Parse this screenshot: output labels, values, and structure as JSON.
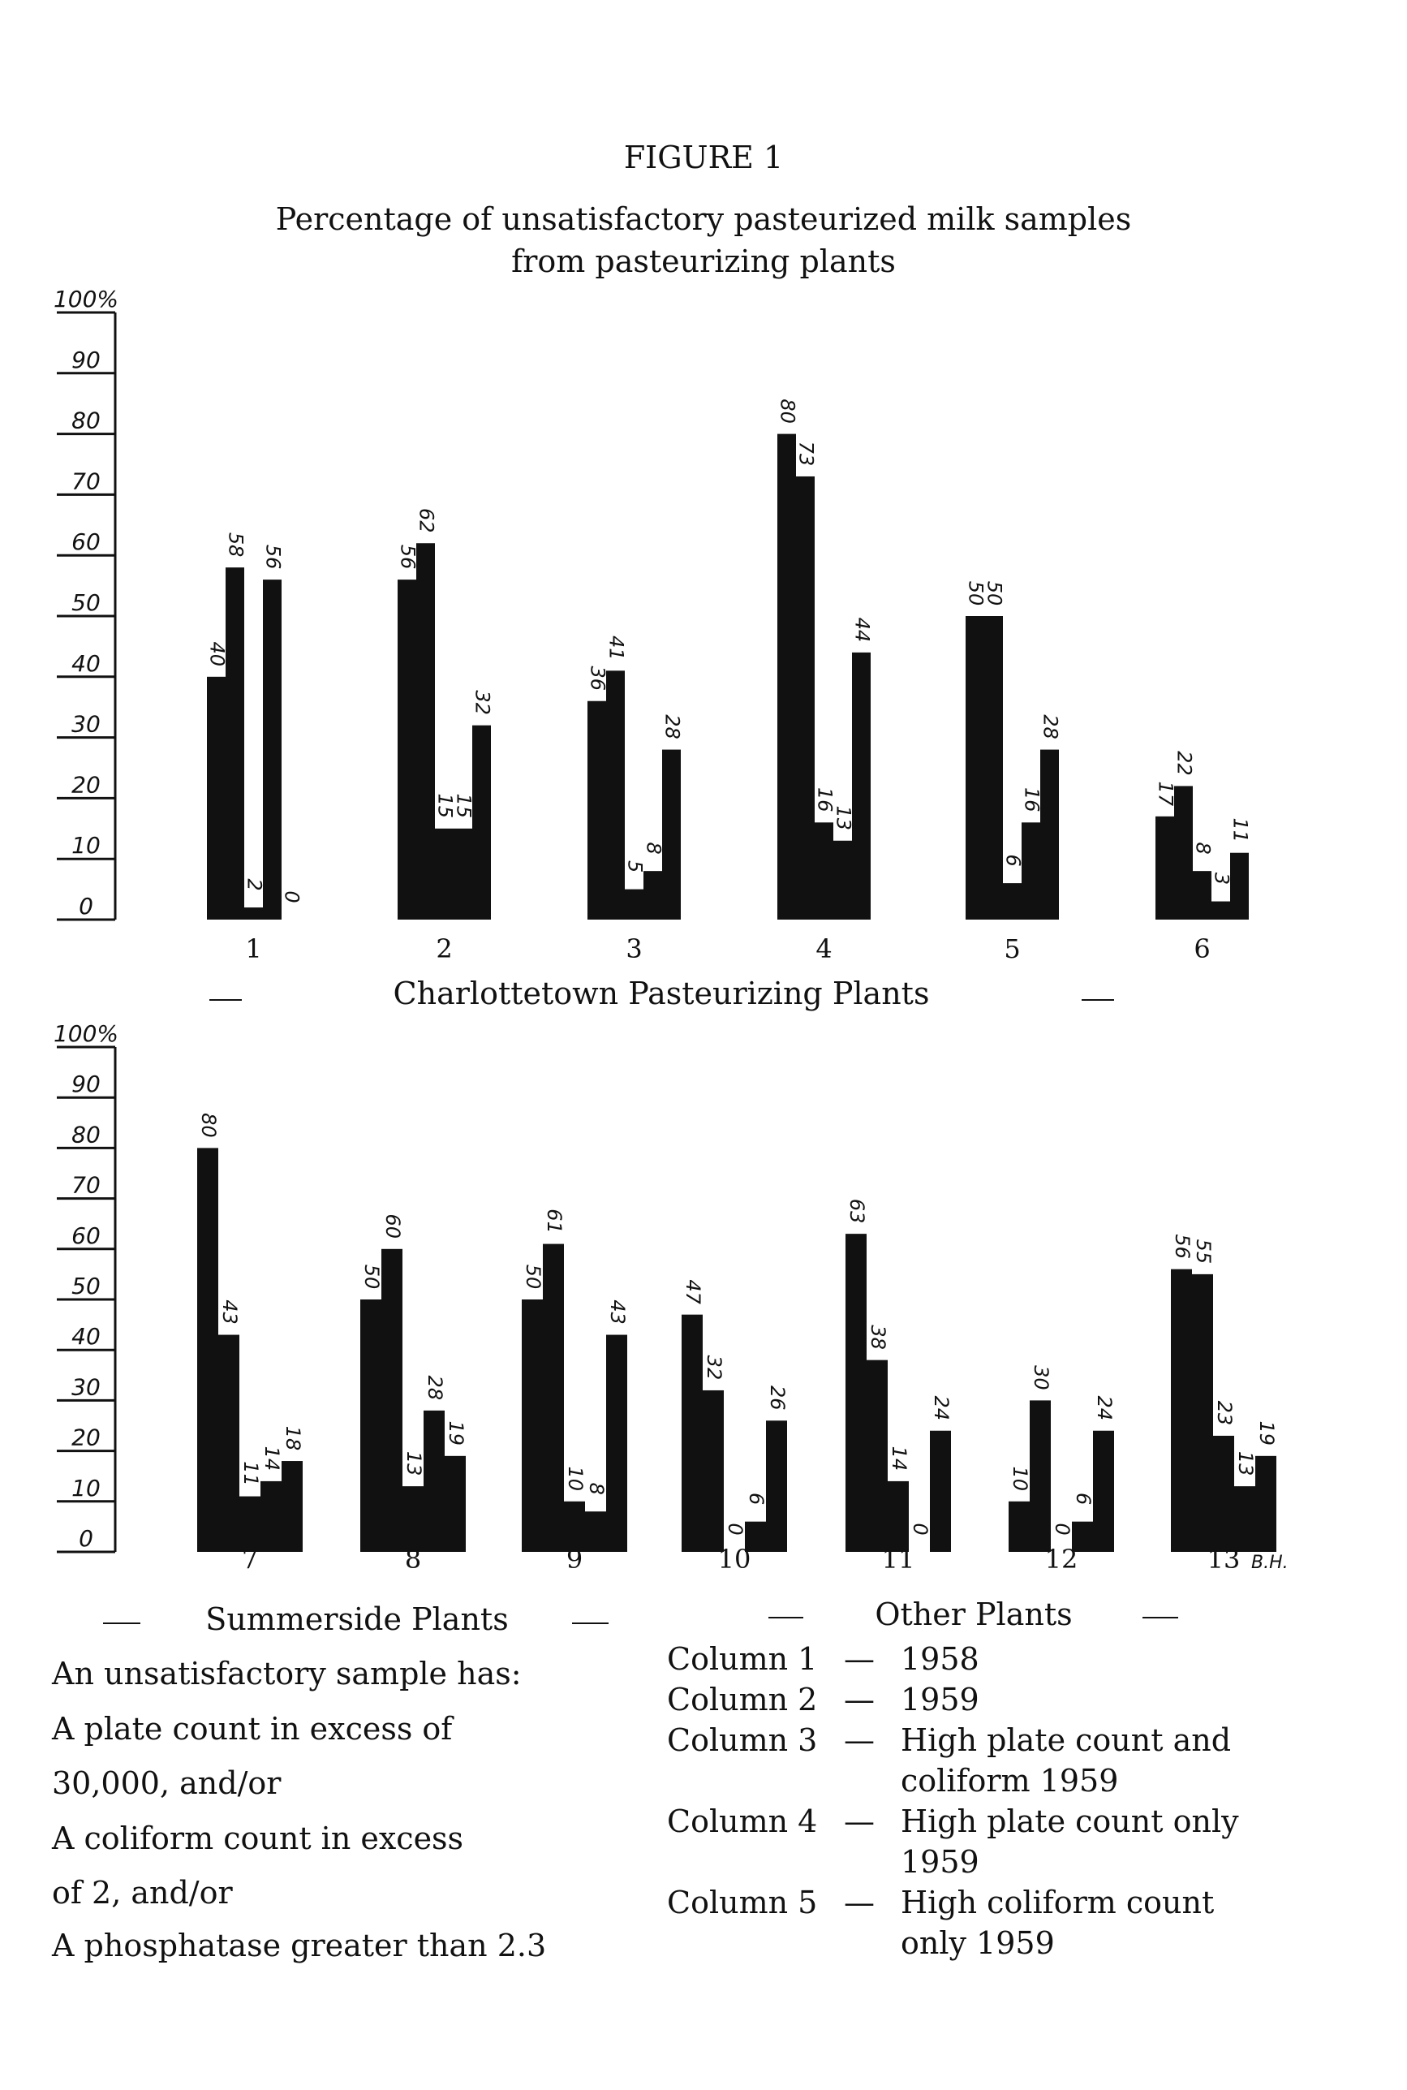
{
  "figure": {
    "label": "FIGURE 1",
    "title_line1": "Percentage of unsatisfactory pasteurized milk samples",
    "title_line2": "from pasteurizing plants"
  },
  "chart_data": [
    {
      "type": "bar",
      "title": "",
      "ylabel": "",
      "ylim": [
        0,
        100
      ],
      "yticks": [
        "100%",
        "90",
        "80",
        "70",
        "60",
        "50",
        "40",
        "30",
        "20",
        "10",
        "0"
      ],
      "group_caption": "Charlottetown Pasteurizing Plants",
      "groups": [
        {
          "label": "1",
          "values": [
            40,
            58,
            2,
            56,
            0
          ]
        },
        {
          "label": "2",
          "values": [
            56,
            62,
            15,
            15,
            32
          ]
        },
        {
          "label": "3",
          "values": [
            36,
            41,
            5,
            8,
            28
          ]
        },
        {
          "label": "4",
          "values": [
            80,
            73,
            16,
            13,
            44
          ]
        },
        {
          "label": "5",
          "values": [
            50,
            50,
            6,
            16,
            28
          ]
        },
        {
          "label": "6",
          "values": [
            17,
            22,
            8,
            3,
            11
          ]
        }
      ]
    },
    {
      "type": "bar",
      "title": "",
      "ylabel": "",
      "ylim": [
        0,
        100
      ],
      "yticks": [
        "100%",
        "90",
        "80",
        "70",
        "60",
        "50",
        "40",
        "30",
        "20",
        "10",
        "0"
      ],
      "group_captions": [
        "Summerside Plants",
        "Other Plants"
      ],
      "groups": [
        {
          "label": "7",
          "values": [
            80,
            43,
            11,
            14,
            18
          ]
        },
        {
          "label": "8",
          "values": [
            50,
            60,
            13,
            28,
            19
          ]
        },
        {
          "label": "9",
          "values": [
            50,
            61,
            10,
            8,
            43
          ]
        },
        {
          "label": "10",
          "values": [
            47,
            32,
            0,
            6,
            26
          ]
        },
        {
          "label": "11",
          "values": [
            63,
            38,
            14,
            0,
            24
          ]
        },
        {
          "label": "12",
          "values": [
            10,
            30,
            0,
            6,
            24
          ]
        },
        {
          "label": "13",
          "note": "B.H.",
          "values": [
            56,
            55,
            23,
            13,
            19
          ]
        }
      ]
    }
  ],
  "definition": {
    "lines": [
      "An unsatisfactory sample has:",
      "A plate count in excess of",
      "30,000, and/or",
      "A coliform count in excess",
      "of 2, and/or",
      "A phosphatase greater than 2.3"
    ]
  },
  "legend": [
    {
      "column": "Column 1",
      "lines": [
        "1958"
      ]
    },
    {
      "column": "Column 2",
      "lines": [
        "1959"
      ]
    },
    {
      "column": "Column 3",
      "lines": [
        "High plate count and",
        "coliform 1959"
      ]
    },
    {
      "column": "Column 4",
      "lines": [
        "High plate count only",
        "1959"
      ]
    },
    {
      "column": "Column 5",
      "lines": [
        "High coliform count",
        "only 1959"
      ]
    }
  ],
  "colors": {
    "bar": "#111111",
    "paper": "#ffffff"
  }
}
